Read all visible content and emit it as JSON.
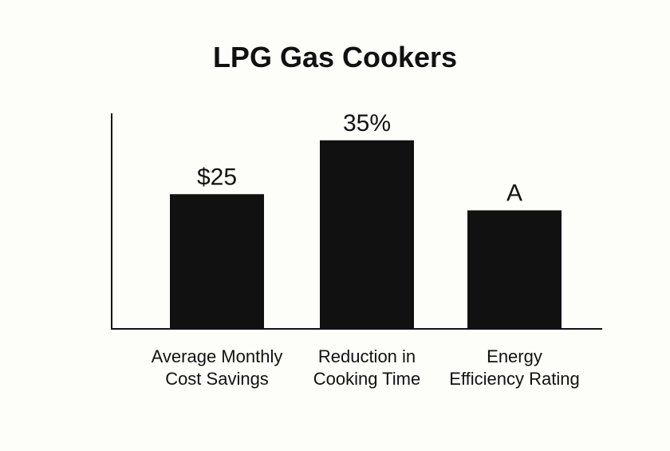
{
  "chart_data": {
    "type": "bar",
    "title": "LPG Gas Cookers",
    "xlabel": "",
    "ylabel": "",
    "categories": [
      [
        "Average Monthly",
        "Cost Savings"
      ],
      [
        "Reduction in",
        "Cooking Time"
      ],
      [
        "Energy",
        "Efficiency Rating"
      ]
    ],
    "values": [
      25,
      35,
      22
    ],
    "value_labels": [
      "$25",
      "35%",
      "A"
    ],
    "ylim": [
      0,
      40
    ],
    "grid": false,
    "legend": "none",
    "bar_color": "#111111",
    "text_color": "#111111"
  }
}
